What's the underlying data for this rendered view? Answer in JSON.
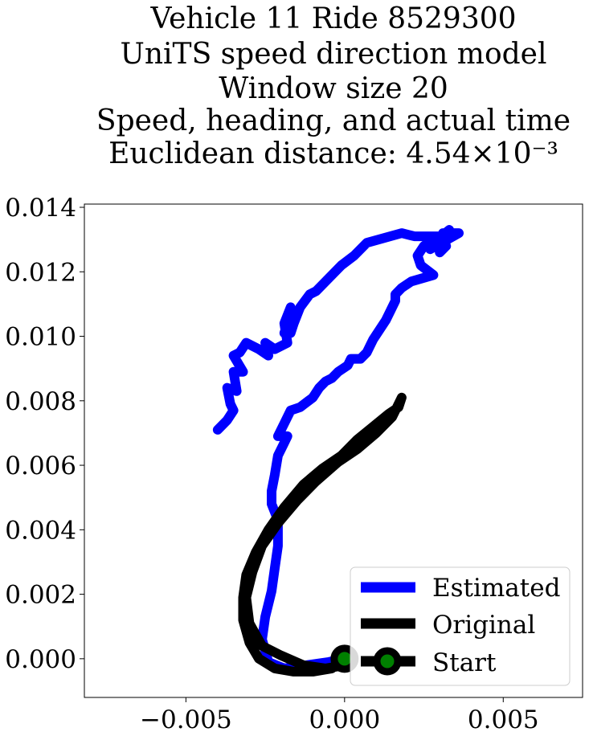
{
  "chart_data": {
    "type": "line",
    "title_lines": [
      "Vehicle 11 Ride 8529300",
      "UniTS speed direction model",
      "Window size 20",
      "Speed, heading, and actual time",
      "Euclidean distance: 4.54×10⁻³"
    ],
    "xlim": [
      -0.0082,
      0.0075
    ],
    "ylim": [
      -0.0012,
      0.0141
    ],
    "x_ticks": [
      -0.005,
      0.0,
      0.005
    ],
    "x_tick_labels": [
      "−0.005",
      "0.000",
      "0.005"
    ],
    "y_ticks": [
      0.0,
      0.002,
      0.004,
      0.006,
      0.008,
      0.01,
      0.012,
      0.014
    ],
    "y_tick_labels": [
      "0.000",
      "0.002",
      "0.004",
      "0.006",
      "0.008",
      "0.010",
      "0.012",
      "0.014"
    ],
    "grid": false,
    "legend_position": "lower-right",
    "series": [
      {
        "name": "Estimated",
        "color": "#0000ff",
        "x": [
          0.0,
          -0.0005,
          -0.0012,
          -0.0019,
          -0.0024,
          -0.0026,
          -0.0025,
          -0.0023,
          -0.0022,
          -0.0021,
          -0.0021,
          -0.0023,
          -0.0023,
          -0.0022,
          -0.0021,
          -0.0019,
          -0.0018,
          -0.0021,
          -0.0019,
          -0.0017,
          -0.0014,
          -0.001,
          -0.0008,
          -0.0006,
          -0.0004,
          -0.0002,
          0.0001,
          0.0002,
          0.0005,
          0.0007,
          0.0008,
          0.0009,
          0.0013,
          0.0016,
          0.0016,
          0.0018,
          0.0021,
          0.0028,
          0.0024,
          0.0023,
          0.0025,
          0.0028,
          0.0031,
          0.0032,
          0.003,
          0.0033,
          0.0028,
          0.0031,
          0.0027,
          0.0036,
          0.0031,
          0.003,
          0.0029,
          0.0033,
          0.003,
          0.0022,
          0.0018,
          0.0007,
          0.0003,
          -0.0001,
          -0.0005,
          -0.0009,
          -0.0011,
          -0.0014,
          -0.0016,
          -0.0017,
          -0.0019,
          -0.0018,
          -0.0017,
          -0.0019,
          -0.0018,
          -0.002,
          -0.0022,
          -0.0025,
          -0.0024,
          -0.0027,
          -0.0031,
          -0.0033,
          -0.0035,
          -0.0032,
          -0.0035,
          -0.0034,
          -0.0037,
          -0.0036,
          -0.0035,
          -0.0037,
          -0.004
        ],
        "y": [
          0.0,
          -0.0001,
          -0.0002,
          -0.0003,
          -0.0001,
          0.0006,
          0.0013,
          0.0021,
          0.0028,
          0.0035,
          0.0043,
          0.0048,
          0.0052,
          0.0057,
          0.0063,
          0.0067,
          0.0069,
          0.0069,
          0.0073,
          0.0077,
          0.0078,
          0.0081,
          0.0084,
          0.0086,
          0.0087,
          0.0089,
          0.0091,
          0.0093,
          0.0093,
          0.0095,
          0.0097,
          0.0099,
          0.0105,
          0.0111,
          0.0113,
          0.0115,
          0.0117,
          0.0119,
          0.0122,
          0.0125,
          0.0128,
          0.013,
          0.0131,
          0.0128,
          0.0126,
          0.0133,
          0.0129,
          0.0131,
          0.0127,
          0.0132,
          0.0132,
          0.0129,
          0.013,
          0.0131,
          0.0131,
          0.0131,
          0.0132,
          0.0129,
          0.0125,
          0.0122,
          0.0118,
          0.0114,
          0.0113,
          0.0109,
          0.0104,
          0.0101,
          0.0101,
          0.0104,
          0.0109,
          0.0104,
          0.0098,
          0.0097,
          0.0096,
          0.0098,
          0.0094,
          0.0096,
          0.0098,
          0.0095,
          0.0094,
          0.0089,
          0.0089,
          0.0083,
          0.0084,
          0.0079,
          0.0077,
          0.0074,
          0.0071
        ]
      },
      {
        "name": "Original",
        "color": "#000000",
        "x": [
          0.0,
          -0.0004,
          -0.001,
          -0.0016,
          -0.0022,
          -0.0027,
          -0.003,
          -0.0032,
          -0.0032,
          -0.0031,
          -0.0028,
          -0.0024,
          -0.0019,
          -0.0013,
          -0.0007,
          -0.0001,
          0.0004,
          0.0009,
          0.0014,
          0.0017,
          0.0018,
          0.0015,
          0.001,
          0.0004,
          -0.0002,
          -0.0009,
          -0.0015,
          -0.0021,
          -0.0026,
          -0.0029,
          -0.0031,
          -0.003,
          -0.0026,
          -0.002,
          -0.0013,
          -0.0006,
          0.0
        ],
        "y": [
          0.0,
          -0.0003,
          -0.0004,
          -0.0004,
          -0.0003,
          0.0,
          0.0005,
          0.0012,
          0.0019,
          0.0026,
          0.0033,
          0.004,
          0.0047,
          0.0054,
          0.0059,
          0.0063,
          0.0068,
          0.0072,
          0.0076,
          0.0078,
          0.0081,
          0.0075,
          0.007,
          0.0065,
          0.0061,
          0.0055,
          0.0049,
          0.0042,
          0.0035,
          0.0027,
          0.0019,
          0.0011,
          0.0004,
          0.0001,
          -0.0002,
          -0.0003,
          -0.0002
        ]
      }
    ],
    "start_marker": {
      "name": "Start",
      "x": 0.0,
      "y": 0.0,
      "fill": "#008000",
      "edge": "#000000"
    }
  }
}
